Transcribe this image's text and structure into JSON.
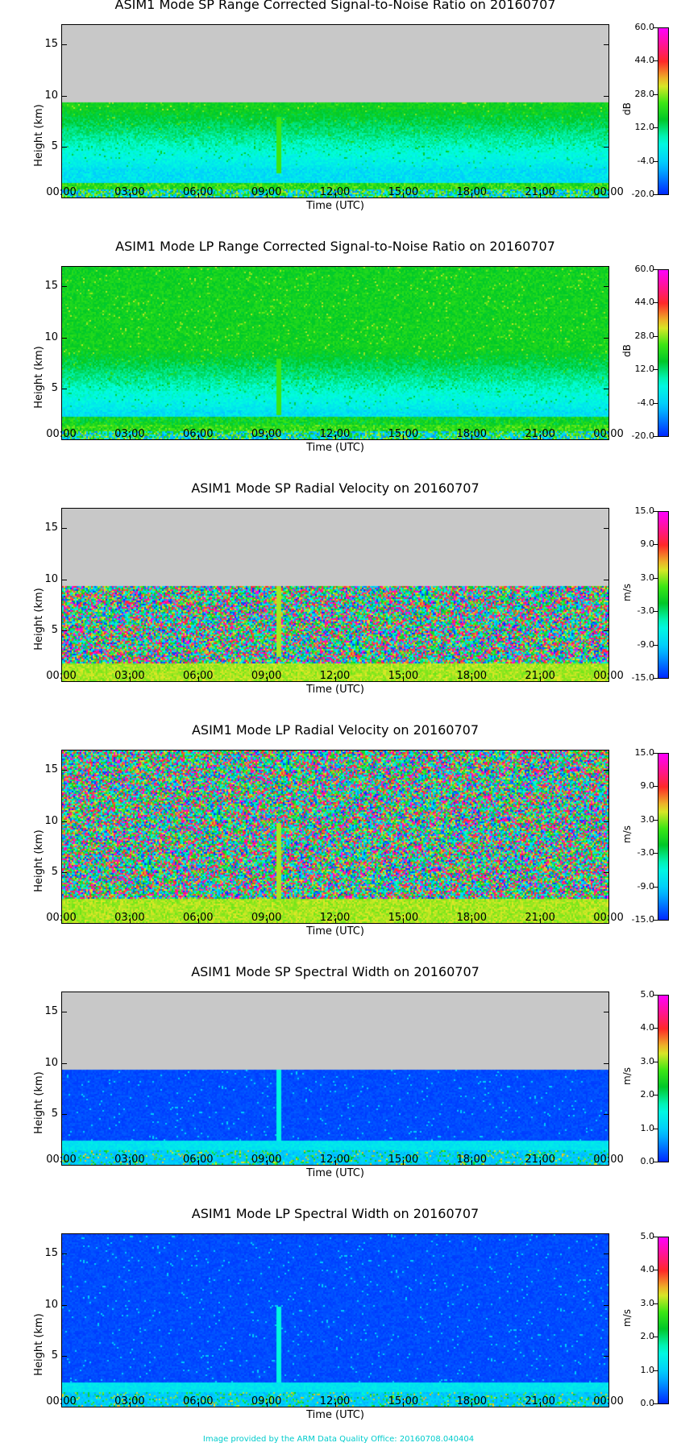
{
  "footer": "Image provided by the ARM Data Quality Office: 20160708.040404",
  "colors": {
    "missing": "#c8c8c8"
  },
  "chart_data": [
    {
      "type": "heatmap",
      "title": "ASIM1 Mode SP Range Corrected Signal-to-Noise Ratio on 20160707",
      "xlabel": "Time (UTC)",
      "ylabel": "Height (km)",
      "unit": "dB",
      "xticks": [
        "00:00",
        "03:00",
        "06:00",
        "09:00",
        "12:00",
        "15:00",
        "18:00",
        "21:00",
        "00:00"
      ],
      "yticks": [
        5,
        10,
        15
      ],
      "ylim": [
        0,
        17
      ],
      "colorbar_ticks": [
        "60.0",
        "44.0",
        "28.0",
        "12.0",
        "-4.0",
        "-20.0"
      ],
      "clim": [
        -20,
        60
      ],
      "colormap": "rainbow",
      "data_top_km": 9.3,
      "pattern": "snr"
    },
    {
      "type": "heatmap",
      "title": "ASIM1 Mode LP Range Corrected Signal-to-Noise Ratio on 20160707",
      "xlabel": "Time (UTC)",
      "ylabel": "Height (km)",
      "unit": "dB",
      "xticks": [
        "00:00",
        "03:00",
        "06:00",
        "09:00",
        "12:00",
        "15:00",
        "18:00",
        "21:00",
        "00:00"
      ],
      "yticks": [
        5,
        10,
        15
      ],
      "ylim": [
        0,
        17
      ],
      "colorbar_ticks": [
        "60.0",
        "44.0",
        "28.0",
        "12.0",
        "-4.0",
        "-20.0"
      ],
      "clim": [
        -20,
        60
      ],
      "colormap": "rainbow",
      "data_top_km": 17,
      "pattern": "snr"
    },
    {
      "type": "heatmap",
      "title": "ASIM1 Mode SP Radial Velocity  on 20160707",
      "xlabel": "Time (UTC)",
      "ylabel": "Height (km)",
      "unit": "m/s",
      "xticks": [
        "00:00",
        "03:00",
        "06:00",
        "09:00",
        "12:00",
        "15:00",
        "18:00",
        "21:00",
        "00:00"
      ],
      "yticks": [
        5,
        10,
        15
      ],
      "ylim": [
        0,
        17
      ],
      "colorbar_ticks": [
        "15.0",
        "9.0",
        "3.0",
        "-3.0",
        "-9.0",
        "-15.0"
      ],
      "clim": [
        -15,
        15
      ],
      "colormap": "rainbow",
      "data_top_km": 9.3,
      "pattern": "velocity"
    },
    {
      "type": "heatmap",
      "title": "ASIM1 Mode LP Radial Velocity  on 20160707",
      "xlabel": "Time (UTC)",
      "ylabel": "Height (km)",
      "unit": "m/s",
      "xticks": [
        "00:00",
        "03:00",
        "06:00",
        "09:00",
        "12:00",
        "15:00",
        "18:00",
        "21:00",
        "00:00"
      ],
      "yticks": [
        5,
        10,
        15
      ],
      "ylim": [
        0,
        17
      ],
      "colorbar_ticks": [
        "15.0",
        "9.0",
        "3.0",
        "-3.0",
        "-9.0",
        "-15.0"
      ],
      "clim": [
        -15,
        15
      ],
      "colormap": "rainbow",
      "data_top_km": 17,
      "pattern": "velocity"
    },
    {
      "type": "heatmap",
      "title": "ASIM1 Mode SP Spectral Width  on 20160707",
      "xlabel": "Time (UTC)",
      "ylabel": "Height (km)",
      "unit": "m/s",
      "xticks": [
        "00:00",
        "03:00",
        "06:00",
        "09:00",
        "12:00",
        "15:00",
        "18:00",
        "21:00",
        "00:00"
      ],
      "yticks": [
        5,
        10,
        15
      ],
      "ylim": [
        0,
        17
      ],
      "colorbar_ticks": [
        "5.0",
        "4.0",
        "3.0",
        "2.0",
        "1.0",
        "0.0"
      ],
      "clim": [
        0,
        5
      ],
      "colormap": "rainbow",
      "data_top_km": 9.3,
      "pattern": "width"
    },
    {
      "type": "heatmap",
      "title": "ASIM1 Mode LP Spectral Width  on 20160707",
      "xlabel": "Time (UTC)",
      "ylabel": "Height (km)",
      "unit": "m/s",
      "xticks": [
        "00:00",
        "03:00",
        "06:00",
        "09:00",
        "12:00",
        "15:00",
        "18:00",
        "21:00",
        "00:00"
      ],
      "yticks": [
        5,
        10,
        15
      ],
      "ylim": [
        0,
        17
      ],
      "colorbar_ticks": [
        "5.0",
        "4.0",
        "3.0",
        "2.0",
        "1.0",
        "0.0"
      ],
      "clim": [
        0,
        5
      ],
      "colormap": "rainbow",
      "data_top_km": 17,
      "pattern": "width"
    }
  ]
}
